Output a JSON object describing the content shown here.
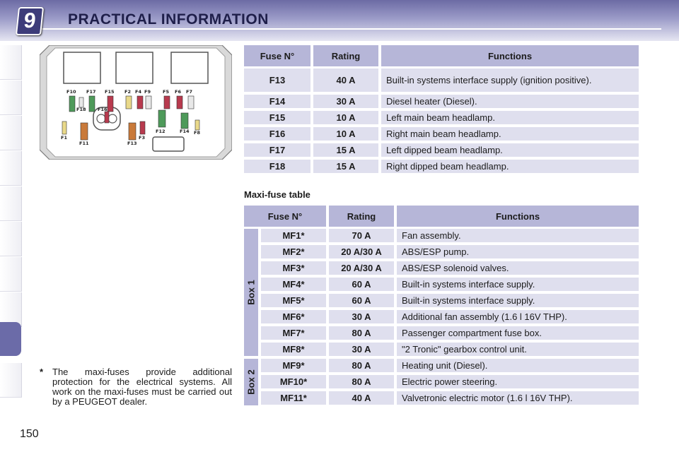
{
  "header": {
    "chapter_number": "9",
    "title": "PRACTICAL INFORMATION"
  },
  "fuse_diagram": {
    "labels": [
      "F10",
      "F17",
      "F15",
      "F2",
      "F4",
      "F9",
      "F5",
      "F6",
      "F7",
      "F18",
      "F16",
      "F1",
      "F11",
      "F13",
      "F3",
      "F12",
      "F14",
      "F8"
    ]
  },
  "fuse_table": {
    "headers": [
      "Fuse N°",
      "Rating",
      "Functions"
    ],
    "rows": [
      {
        "fuse": "F13",
        "rating": "40 A",
        "function": "Built-in systems interface supply (ignition positive)."
      },
      {
        "fuse": "F14",
        "rating": "30 A",
        "function": "Diesel heater (Diesel)."
      },
      {
        "fuse": "F15",
        "rating": "10 A",
        "function": "Left main beam headlamp."
      },
      {
        "fuse": "F16",
        "rating": "10 A",
        "function": "Right main beam headlamp."
      },
      {
        "fuse": "F17",
        "rating": "15 A",
        "function": "Left dipped beam headlamp."
      },
      {
        "fuse": "F18",
        "rating": "15 A",
        "function": "Right dipped beam headlamp."
      }
    ]
  },
  "maxi_fuse_table": {
    "title": "Maxi-fuse table",
    "headers": [
      "Fuse N°",
      "Rating",
      "Functions"
    ],
    "box1_label": "Box 1",
    "box2_label": "Box 2",
    "rows": [
      {
        "fuse": "MF1*",
        "rating": "70 A",
        "function": "Fan assembly."
      },
      {
        "fuse": "MF2*",
        "rating": "20 A/30 A",
        "function": "ABS/ESP pump."
      },
      {
        "fuse": "MF3*",
        "rating": "20 A/30 A",
        "function": "ABS/ESP solenoid valves."
      },
      {
        "fuse": "MF4*",
        "rating": "60 A",
        "function": "Built-in systems interface supply."
      },
      {
        "fuse": "MF5*",
        "rating": "60 A",
        "function": "Built-in systems interface supply."
      },
      {
        "fuse": "MF6*",
        "rating": "30 A",
        "function": "Additional fan assembly (1.6 l 16V THP)."
      },
      {
        "fuse": "MF7*",
        "rating": "80 A",
        "function": "Passenger compartment fuse box."
      },
      {
        "fuse": "MF8*",
        "rating": "30 A",
        "function": "\"2 Tronic\" gearbox control unit."
      },
      {
        "fuse": "MF9*",
        "rating": "80 A",
        "function": "Heating unit (Diesel)."
      },
      {
        "fuse": "MF10*",
        "rating": "80 A",
        "function": "Electric power steering."
      },
      {
        "fuse": "MF11*",
        "rating": "40 A",
        "function": "Valvetronic electric motor (1.6 l 16V THP)."
      }
    ]
  },
  "footnote": {
    "marker": "*",
    "text": "The maxi-fuses provide additional protection for the electrical systems. All work on the maxi-fuses must be carried out by a PEUGEOT dealer."
  },
  "page_number": "150",
  "colors": {
    "header_bg": "#6c6ba4",
    "table_header": "#b6b6d8",
    "table_cell": "#dfdfee",
    "badge": "#3d3c7a"
  }
}
